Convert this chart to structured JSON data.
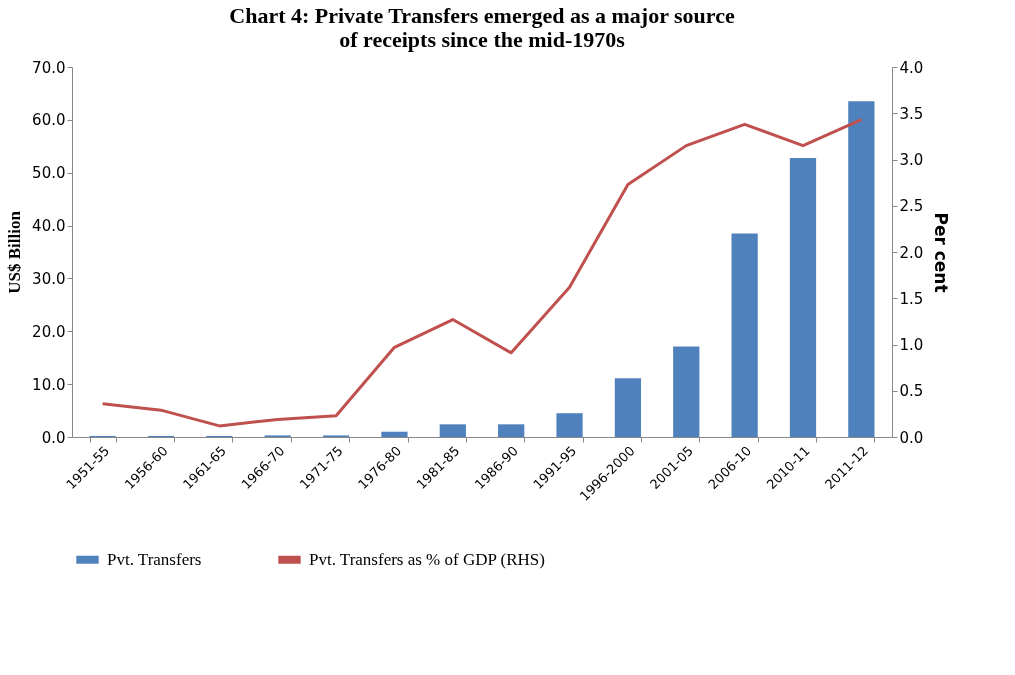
{
  "chart_data": {
    "type": "bar",
    "title": [
      "Chart 4:  Private Transfers  emerged  as  a major source",
      "of receipts since the mid-1970s"
    ],
    "ylabel": "US$ Billion",
    "y2label": "Per cent",
    "categories": [
      "1951-55",
      "1956-60",
      "1961-65",
      "1966-70",
      "1971-75",
      "1976-80",
      "1981-85",
      "1986-90",
      "1991-95",
      "1996-2000",
      "2001-05",
      "2006-10",
      "2010-11",
      "2011-12"
    ],
    "series": [
      {
        "name": "Pvt. Transfers",
        "color": "#4f81bd",
        "values": [
          0.2,
          0.2,
          0.2,
          0.3,
          0.3,
          1.0,
          2.4,
          2.4,
          4.5,
          11.1,
          17.1,
          38.5,
          52.8,
          63.5
        ]
      },
      {
        "name": "Pvt. Transfers as % of GDP (RHS)",
        "type": "line",
        "axis": "y2",
        "color": "#c0504d",
        "values": [
          0.36,
          0.29,
          0.12,
          0.19,
          0.23,
          0.97,
          1.27,
          0.91,
          1.62,
          2.73,
          3.15,
          3.38,
          3.15,
          3.43
        ]
      }
    ],
    "ylim": [
      0,
      70
    ],
    "yticks": [
      {
        "value": 0,
        "label": "0.0"
      },
      {
        "value": 10,
        "label": "10.0"
      },
      {
        "value": 20,
        "label": "20.0"
      },
      {
        "value": 30,
        "label": "30.0"
      },
      {
        "value": 40,
        "label": "40.0"
      },
      {
        "value": 50,
        "label": "50.0"
      },
      {
        "value": 60,
        "label": "60.0"
      },
      {
        "value": 70,
        "label": "70.0"
      }
    ],
    "y2lim": [
      0,
      4
    ],
    "y2ticks": [
      {
        "value": 0,
        "label": "0.0"
      },
      {
        "value": 0.5,
        "label": "0.5"
      },
      {
        "value": 1,
        "label": "1.0"
      },
      {
        "value": 1.5,
        "label": "1.5"
      },
      {
        "value": 2,
        "label": "2.0"
      },
      {
        "value": 2.5,
        "label": "2.5"
      },
      {
        "value": 3,
        "label": "3.0"
      },
      {
        "value": 3.5,
        "label": "3.5"
      },
      {
        "value": 4,
        "label": "4.0"
      }
    ],
    "grid": false,
    "legend": "bottom",
    "line_style": "solid"
  }
}
